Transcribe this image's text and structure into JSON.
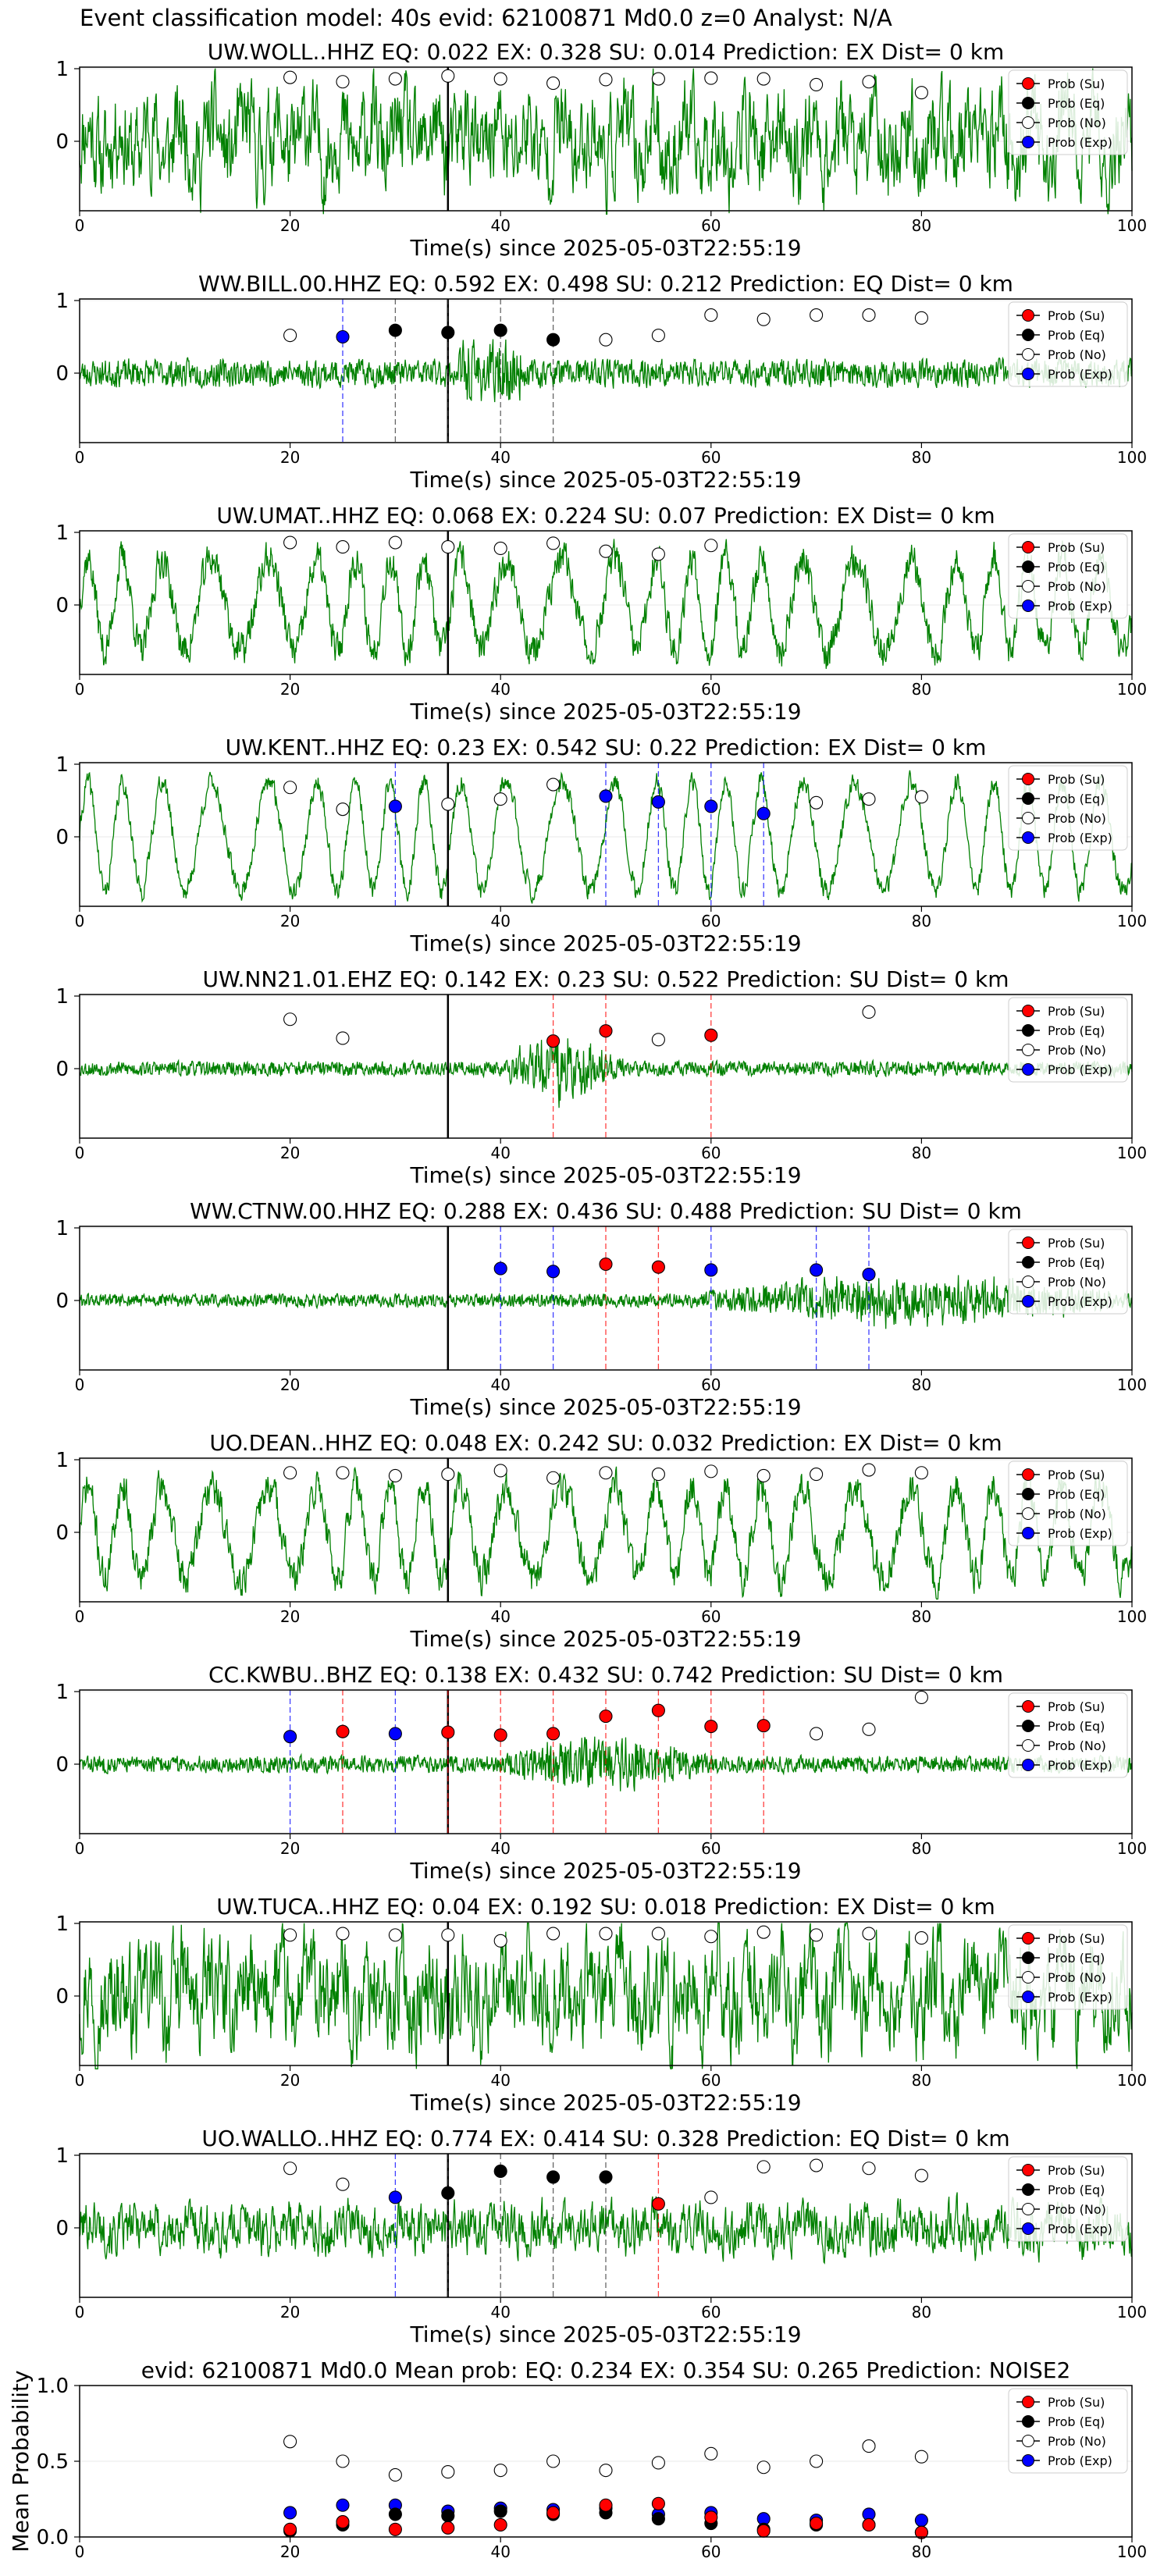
{
  "figure": {
    "suptitle": "Event classification model: 40s evid: 62100871 Md0.0 z=0 Analyst: N/A",
    "xlabel": "Time(s) since 2025-05-03T22:55:19",
    "legend": [
      "Prob (Su)",
      "Prob (Eq)",
      "Prob (No)",
      "Prob (Exp)"
    ],
    "colors": {
      "su": "#ff0000",
      "eq": "#000000",
      "no": "#ffffff",
      "exp": "#0000ff",
      "trace": "#008000",
      "pick": "#000000"
    }
  },
  "chart_data": [
    {
      "type": "line",
      "title": "UW.WOLL..HHZ   EQ: 0.022  EX: 0.328  SU: 0.014   Prediction: EX    Dist= 0 km",
      "xlim": [
        0,
        100
      ],
      "ylim_ticks": [
        0,
        1
      ],
      "p_pick": 35,
      "trace": {
        "style": "strongnoise",
        "amp": 1.2,
        "seed": 11
      },
      "points": [
        {
          "x": 20,
          "y": 0.88,
          "cls": "no"
        },
        {
          "x": 25,
          "y": 0.82,
          "cls": "no"
        },
        {
          "x": 30,
          "y": 0.86,
          "cls": "no"
        },
        {
          "x": 35,
          "y": 0.9,
          "cls": "no"
        },
        {
          "x": 40,
          "y": 0.86,
          "cls": "no"
        },
        {
          "x": 45,
          "y": 0.8,
          "cls": "no"
        },
        {
          "x": 50,
          "y": 0.85,
          "cls": "no"
        },
        {
          "x": 55,
          "y": 0.86,
          "cls": "no"
        },
        {
          "x": 60,
          "y": 0.87,
          "cls": "no"
        },
        {
          "x": 65,
          "y": 0.86,
          "cls": "no"
        },
        {
          "x": 70,
          "y": 0.78,
          "cls": "no"
        },
        {
          "x": 75,
          "y": 0.82,
          "cls": "no"
        },
        {
          "x": 80,
          "y": 0.67,
          "cls": "no"
        }
      ]
    },
    {
      "type": "line",
      "title": "WW.BILL.00.HHZ   EQ: 0.592  EX: 0.498  SU: 0.212   Prediction: EQ    Dist= 0 km",
      "xlim": [
        0,
        100
      ],
      "ylim_ticks": [
        0,
        1
      ],
      "p_pick": 35,
      "trace": {
        "style": "quiet",
        "amp": 0.55,
        "seed": 23
      },
      "points": [
        {
          "x": 20,
          "y": 0.52,
          "cls": "no"
        },
        {
          "x": 25,
          "y": 0.5,
          "cls": "exp"
        },
        {
          "x": 30,
          "y": 0.59,
          "cls": "eq"
        },
        {
          "x": 35,
          "y": 0.56,
          "cls": "eq"
        },
        {
          "x": 40,
          "y": 0.59,
          "cls": "eq"
        },
        {
          "x": 45,
          "y": 0.46,
          "cls": "eq"
        },
        {
          "x": 50,
          "y": 0.46,
          "cls": "no"
        },
        {
          "x": 55,
          "y": 0.52,
          "cls": "no"
        },
        {
          "x": 60,
          "y": 0.8,
          "cls": "no"
        },
        {
          "x": 65,
          "y": 0.74,
          "cls": "no"
        },
        {
          "x": 70,
          "y": 0.8,
          "cls": "no"
        },
        {
          "x": 75,
          "y": 0.8,
          "cls": "no"
        },
        {
          "x": 80,
          "y": 0.76,
          "cls": "no"
        }
      ]
    },
    {
      "type": "line",
      "title": "UW.UMAT..HHZ   EQ: 0.068  EX: 0.224  SU: 0.07   Prediction: EX    Dist= 0 km",
      "xlim": [
        0,
        100
      ],
      "ylim_ticks": [
        0,
        1
      ],
      "p_pick": 35,
      "trace": {
        "style": "swell",
        "amp": 1.1,
        "seed": 37
      },
      "points": [
        {
          "x": 20,
          "y": 0.86,
          "cls": "no"
        },
        {
          "x": 25,
          "y": 0.8,
          "cls": "no"
        },
        {
          "x": 30,
          "y": 0.86,
          "cls": "no"
        },
        {
          "x": 35,
          "y": 0.8,
          "cls": "no"
        },
        {
          "x": 40,
          "y": 0.78,
          "cls": "no"
        },
        {
          "x": 45,
          "y": 0.85,
          "cls": "no"
        },
        {
          "x": 50,
          "y": 0.74,
          "cls": "no"
        },
        {
          "x": 55,
          "y": 0.7,
          "cls": "no"
        },
        {
          "x": 60,
          "y": 0.82,
          "cls": "no"
        }
      ]
    },
    {
      "type": "line",
      "title": "UW.KENT..HHZ   EQ: 0.23  EX: 0.542  SU: 0.22   Prediction: EX    Dist= 0 km",
      "xlim": [
        0,
        100
      ],
      "ylim_ticks": [
        0,
        1
      ],
      "p_pick": 35,
      "trace": {
        "style": "swellbig",
        "amp": 1.3,
        "seed": 41
      },
      "points": [
        {
          "x": 20,
          "y": 0.68,
          "cls": "no"
        },
        {
          "x": 25,
          "y": 0.38,
          "cls": "no"
        },
        {
          "x": 30,
          "y": 0.42,
          "cls": "exp"
        },
        {
          "x": 35,
          "y": 0.45,
          "cls": "no"
        },
        {
          "x": 40,
          "y": 0.52,
          "cls": "no"
        },
        {
          "x": 45,
          "y": 0.72,
          "cls": "no"
        },
        {
          "x": 50,
          "y": 0.56,
          "cls": "exp"
        },
        {
          "x": 55,
          "y": 0.48,
          "cls": "exp"
        },
        {
          "x": 60,
          "y": 0.42,
          "cls": "exp"
        },
        {
          "x": 65,
          "y": 0.32,
          "cls": "exp"
        },
        {
          "x": 70,
          "y": 0.47,
          "cls": "no"
        },
        {
          "x": 75,
          "y": 0.52,
          "cls": "no"
        },
        {
          "x": 80,
          "y": 0.55,
          "cls": "no"
        }
      ]
    },
    {
      "type": "line",
      "title": "UW.NN21.01.EHZ   EQ: 0.142  EX: 0.23  SU: 0.522   Prediction: SU    Dist= 0 km",
      "xlim": [
        0,
        100
      ],
      "ylim_ticks": [
        0,
        1
      ],
      "p_pick": 35,
      "trace": {
        "style": "burst",
        "amp": 0.35,
        "seed": 53,
        "burst": [
          40,
          52,
          3.2
        ]
      },
      "points": [
        {
          "x": 20,
          "y": 0.68,
          "cls": "no"
        },
        {
          "x": 25,
          "y": 0.42,
          "cls": "no"
        },
        {
          "x": 45,
          "y": 0.38,
          "cls": "su"
        },
        {
          "x": 50,
          "y": 0.52,
          "cls": "su"
        },
        {
          "x": 55,
          "y": 0.4,
          "cls": "no"
        },
        {
          "x": 60,
          "y": 0.46,
          "cls": "su"
        },
        {
          "x": 75,
          "y": 0.78,
          "cls": "no"
        }
      ]
    },
    {
      "type": "line",
      "title": "WW.CTNW.00.HHZ   EQ: 0.288  EX: 0.436  SU: 0.488   Prediction: SU    Dist= 0 km",
      "xlim": [
        0,
        100
      ],
      "ylim_ticks": [
        0,
        1
      ],
      "p_pick": 35,
      "trace": {
        "style": "burst",
        "amp": 0.32,
        "seed": 61,
        "burst": [
          58,
          100,
          2.4
        ]
      },
      "points": [
        {
          "x": 40,
          "y": 0.44,
          "cls": "exp"
        },
        {
          "x": 45,
          "y": 0.4,
          "cls": "exp"
        },
        {
          "x": 50,
          "y": 0.5,
          "cls": "su"
        },
        {
          "x": 55,
          "y": 0.46,
          "cls": "su"
        },
        {
          "x": 60,
          "y": 0.42,
          "cls": "exp"
        },
        {
          "x": 70,
          "y": 0.42,
          "cls": "exp"
        },
        {
          "x": 75,
          "y": 0.36,
          "cls": "exp"
        }
      ]
    },
    {
      "type": "line",
      "title": "UO.DEAN..HHZ   EQ: 0.048  EX: 0.242  SU: 0.032   Prediction: EX    Dist= 0 km",
      "xlim": [
        0,
        100
      ],
      "ylim_ticks": [
        0,
        1
      ],
      "p_pick": 35,
      "trace": {
        "style": "swell",
        "amp": 1.1,
        "seed": 71
      },
      "points": [
        {
          "x": 20,
          "y": 0.82,
          "cls": "no"
        },
        {
          "x": 25,
          "y": 0.82,
          "cls": "no"
        },
        {
          "x": 30,
          "y": 0.78,
          "cls": "no"
        },
        {
          "x": 35,
          "y": 0.8,
          "cls": "no"
        },
        {
          "x": 40,
          "y": 0.85,
          "cls": "no"
        },
        {
          "x": 45,
          "y": 0.75,
          "cls": "no"
        },
        {
          "x": 50,
          "y": 0.82,
          "cls": "no"
        },
        {
          "x": 55,
          "y": 0.8,
          "cls": "no"
        },
        {
          "x": 60,
          "y": 0.84,
          "cls": "no"
        },
        {
          "x": 65,
          "y": 0.78,
          "cls": "no"
        },
        {
          "x": 70,
          "y": 0.8,
          "cls": "no"
        },
        {
          "x": 75,
          "y": 0.86,
          "cls": "no"
        },
        {
          "x": 80,
          "y": 0.82,
          "cls": "no"
        }
      ]
    },
    {
      "type": "line",
      "title": "CC.KWBU..BHZ   EQ: 0.138  EX: 0.432  SU: 0.742   Prediction: SU    Dist= 0 km",
      "xlim": [
        0,
        100
      ],
      "ylim_ticks": [
        0,
        1
      ],
      "p_pick": 35,
      "trace": {
        "style": "burst",
        "amp": 0.4,
        "seed": 83,
        "burst": [
          40,
          60,
          2.3
        ]
      },
      "points": [
        {
          "x": 20,
          "y": 0.38,
          "cls": "exp"
        },
        {
          "x": 25,
          "y": 0.45,
          "cls": "su"
        },
        {
          "x": 30,
          "y": 0.42,
          "cls": "exp"
        },
        {
          "x": 35,
          "y": 0.44,
          "cls": "su"
        },
        {
          "x": 40,
          "y": 0.4,
          "cls": "su"
        },
        {
          "x": 45,
          "y": 0.42,
          "cls": "su"
        },
        {
          "x": 50,
          "y": 0.66,
          "cls": "su"
        },
        {
          "x": 55,
          "y": 0.74,
          "cls": "su"
        },
        {
          "x": 60,
          "y": 0.52,
          "cls": "su"
        },
        {
          "x": 65,
          "y": 0.53,
          "cls": "su"
        },
        {
          "x": 70,
          "y": 0.42,
          "cls": "no"
        },
        {
          "x": 75,
          "y": 0.48,
          "cls": "no"
        },
        {
          "x": 80,
          "y": 0.92,
          "cls": "no"
        }
      ]
    },
    {
      "type": "line",
      "title": "UW.TUCA..HHZ   EQ: 0.04  EX: 0.192  SU: 0.018   Prediction: EX    Dist= 0 km",
      "xlim": [
        0,
        100
      ],
      "ylim_ticks": [
        0,
        1
      ],
      "p_pick": 35,
      "trace": {
        "style": "strongnoise",
        "amp": 1.3,
        "seed": 97
      },
      "points": [
        {
          "x": 20,
          "y": 0.84,
          "cls": "no"
        },
        {
          "x": 25,
          "y": 0.86,
          "cls": "no"
        },
        {
          "x": 30,
          "y": 0.84,
          "cls": "no"
        },
        {
          "x": 35,
          "y": 0.84,
          "cls": "no"
        },
        {
          "x": 40,
          "y": 0.76,
          "cls": "no"
        },
        {
          "x": 45,
          "y": 0.86,
          "cls": "no"
        },
        {
          "x": 50,
          "y": 0.86,
          "cls": "no"
        },
        {
          "x": 55,
          "y": 0.86,
          "cls": "no"
        },
        {
          "x": 60,
          "y": 0.82,
          "cls": "no"
        },
        {
          "x": 65,
          "y": 0.88,
          "cls": "no"
        },
        {
          "x": 70,
          "y": 0.84,
          "cls": "no"
        },
        {
          "x": 75,
          "y": 0.86,
          "cls": "no"
        },
        {
          "x": 80,
          "y": 0.8,
          "cls": "no"
        }
      ]
    },
    {
      "type": "line",
      "title": "UO.WALLO..HHZ   EQ: 0.774  EX: 0.414  SU: 0.328   Prediction: EQ    Dist= 0 km",
      "xlim": [
        0,
        100
      ],
      "ylim_ticks": [
        0,
        1
      ],
      "p_pick": 35,
      "trace": {
        "style": "noise",
        "amp": 0.7,
        "seed": 101
      },
      "points": [
        {
          "x": 20,
          "y": 0.82,
          "cls": "no"
        },
        {
          "x": 25,
          "y": 0.6,
          "cls": "no"
        },
        {
          "x": 30,
          "y": 0.42,
          "cls": "exp"
        },
        {
          "x": 35,
          "y": 0.48,
          "cls": "eq"
        },
        {
          "x": 40,
          "y": 0.78,
          "cls": "eq"
        },
        {
          "x": 45,
          "y": 0.7,
          "cls": "eq"
        },
        {
          "x": 50,
          "y": 0.7,
          "cls": "eq"
        },
        {
          "x": 55,
          "y": 0.33,
          "cls": "su"
        },
        {
          "x": 60,
          "y": 0.42,
          "cls": "no"
        },
        {
          "x": 65,
          "y": 0.84,
          "cls": "no"
        },
        {
          "x": 70,
          "y": 0.86,
          "cls": "no"
        },
        {
          "x": 75,
          "y": 0.82,
          "cls": "no"
        },
        {
          "x": 80,
          "y": 0.72,
          "cls": "no"
        }
      ]
    }
  ],
  "mean": {
    "type": "scatter",
    "title": "evid: 62100871  Md0.0    Mean prob:   EQ: 0.234  EX: 0.354  SU: 0.265   Prediction: NOISE2",
    "ylabel": "Mean Probability",
    "xlim": [
      0,
      100
    ],
    "ylim": [
      0,
      1
    ],
    "yticks": [
      0.0,
      0.5,
      1.0
    ],
    "xticks": [
      0,
      20,
      40,
      60,
      80,
      100
    ],
    "x": [
      20,
      25,
      30,
      35,
      40,
      45,
      50,
      55,
      60,
      65,
      70,
      75,
      80
    ],
    "series": [
      {
        "name": "Prob (No)",
        "cls": "no",
        "values": [
          0.63,
          0.5,
          0.41,
          0.43,
          0.44,
          0.5,
          0.44,
          0.49,
          0.55,
          0.46,
          0.5,
          0.6,
          0.53
        ]
      },
      {
        "name": "Prob (Exp)",
        "cls": "exp",
        "values": [
          0.16,
          0.21,
          0.21,
          0.17,
          0.19,
          0.18,
          0.19,
          0.15,
          0.16,
          0.12,
          0.11,
          0.15,
          0.11
        ]
      },
      {
        "name": "Prob (Eq)",
        "cls": "eq",
        "values": [
          0.04,
          0.08,
          0.15,
          0.14,
          0.17,
          0.15,
          0.16,
          0.12,
          0.09,
          0.05,
          0.08,
          0.08,
          0.03
        ]
      },
      {
        "name": "Prob (Su)",
        "cls": "su",
        "values": [
          0.05,
          0.1,
          0.05,
          0.06,
          0.08,
          0.16,
          0.21,
          0.22,
          0.13,
          0.04,
          0.09,
          0.08,
          0.03
        ]
      }
    ]
  }
}
